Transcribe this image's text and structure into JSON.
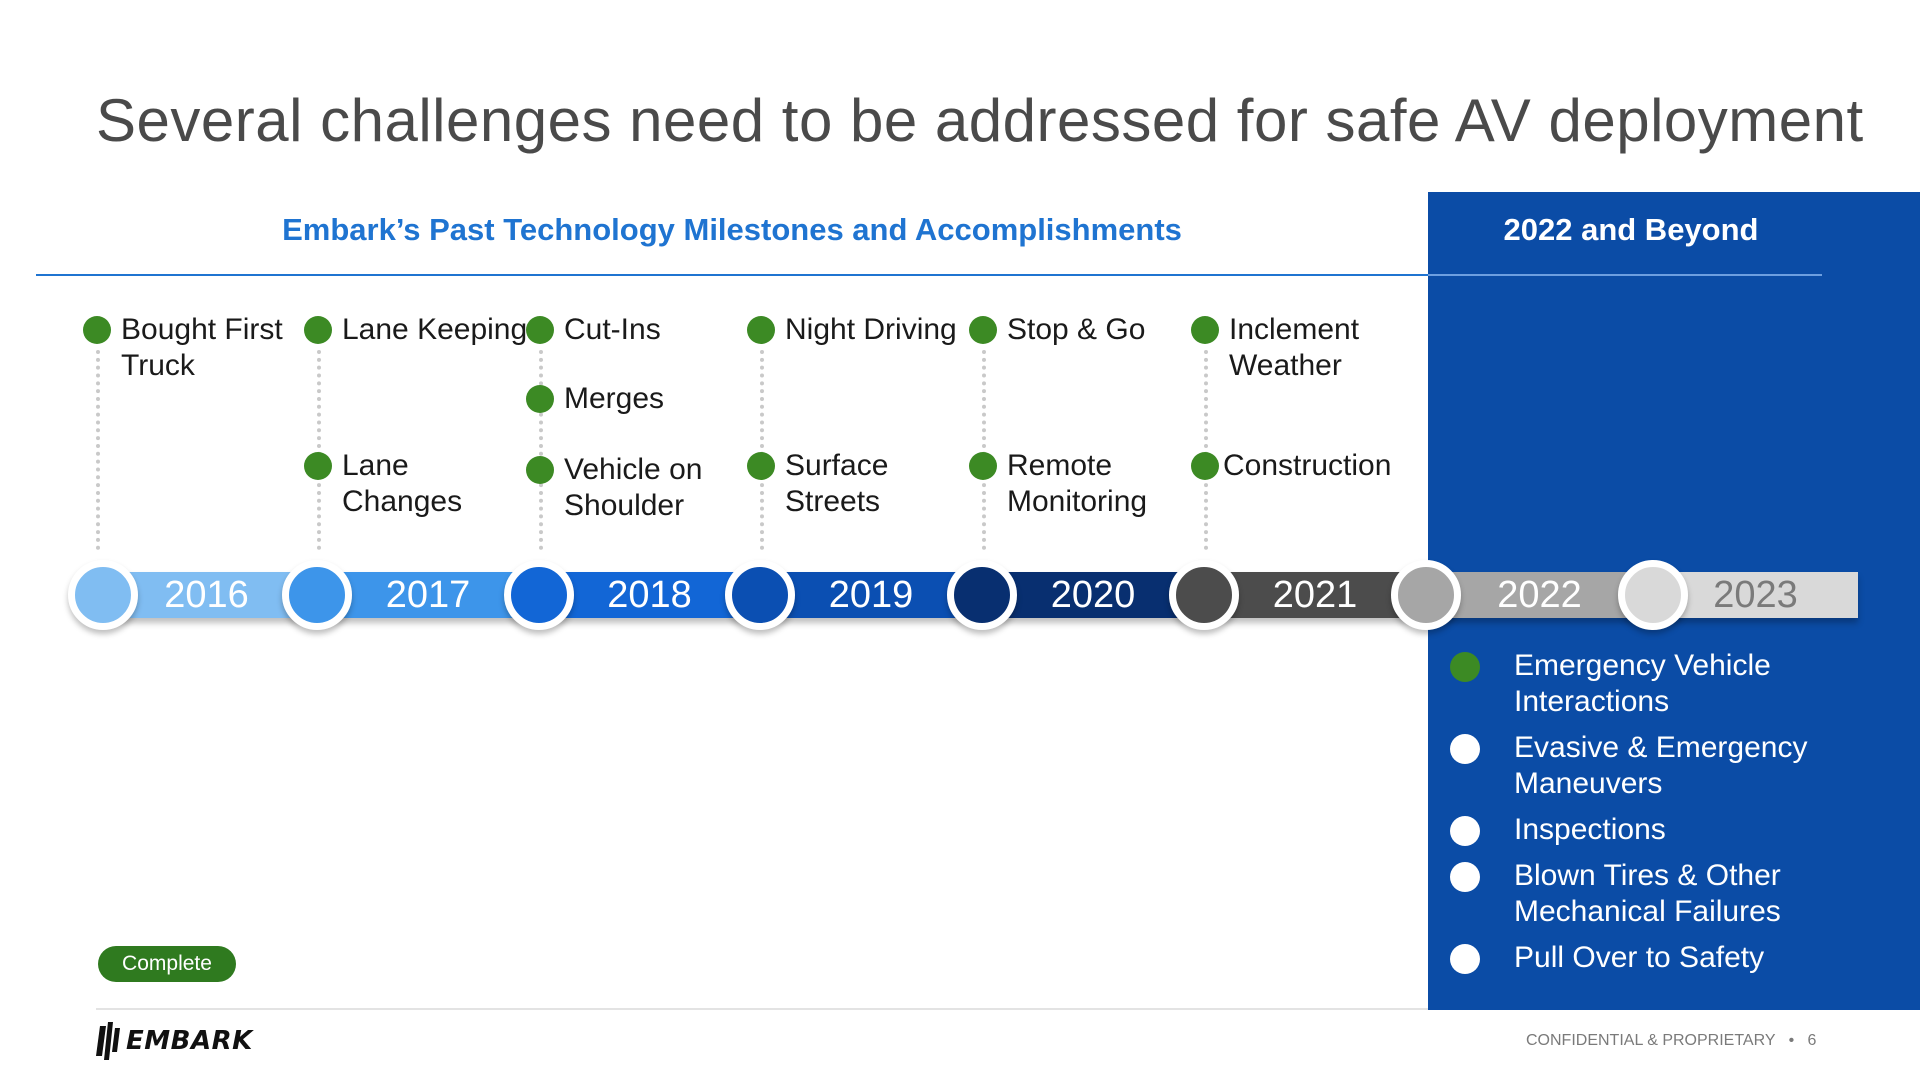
{
  "title": "Several challenges need to be addressed for safe AV deployment",
  "past_header": "Embark’s Past Technology Milestones and Accomplishments",
  "beyond_header": "2022 and Beyond",
  "timeline": {
    "years": [
      "2016",
      "2017",
      "2018",
      "2019",
      "2020",
      "2021",
      "2022",
      "2023"
    ],
    "colors": {
      "2016": "#80bdf2",
      "2017": "#3d95ea",
      "2018": "#1266d6",
      "2019": "#0b4fb2",
      "2020": "#082f70",
      "2021": "#4c4c4c",
      "2022": "#a6a6a6",
      "2023": "#d9d9d9"
    },
    "label_colors": {
      "2022": "#ffffff",
      "2023": "#7a7a7a"
    }
  },
  "milestones": {
    "y2016": [
      "Bought First\nTruck"
    ],
    "y2017": [
      "Lane Keeping",
      "Lane\nChanges"
    ],
    "y2018": [
      "Cut-Ins",
      "Merges",
      "Vehicle on\nShoulder"
    ],
    "y2019": [
      "Night Driving",
      "Surface\nStreets"
    ],
    "y2020": [
      "Stop & Go",
      "Remote\nMonitoring"
    ],
    "y2021": [
      "Inclement\nWeather",
      "Construction"
    ]
  },
  "beyond_items": [
    {
      "label": "Emergency Vehicle\nInteractions",
      "status": "complete"
    },
    {
      "label": "Evasive & Emergency\nManeuvers",
      "status": "pending"
    },
    {
      "label": "Inspections",
      "status": "pending"
    },
    {
      "label": "Blown Tires & Other\nMechanical Failures",
      "status": "pending"
    },
    {
      "label": "Pull Over to Safety",
      "status": "pending"
    }
  ],
  "legend": {
    "complete_label": "Complete"
  },
  "colors": {
    "complete_dot": "#3c8a24",
    "pending_dot": "#ffffff",
    "accent_blue": "#1f74d1",
    "panel_blue": "#0b4ca6"
  },
  "footer": {
    "logo_text": "EMBARK",
    "confidential": "CONFIDENTIAL & PROPRIETARY",
    "page_number": "6"
  }
}
